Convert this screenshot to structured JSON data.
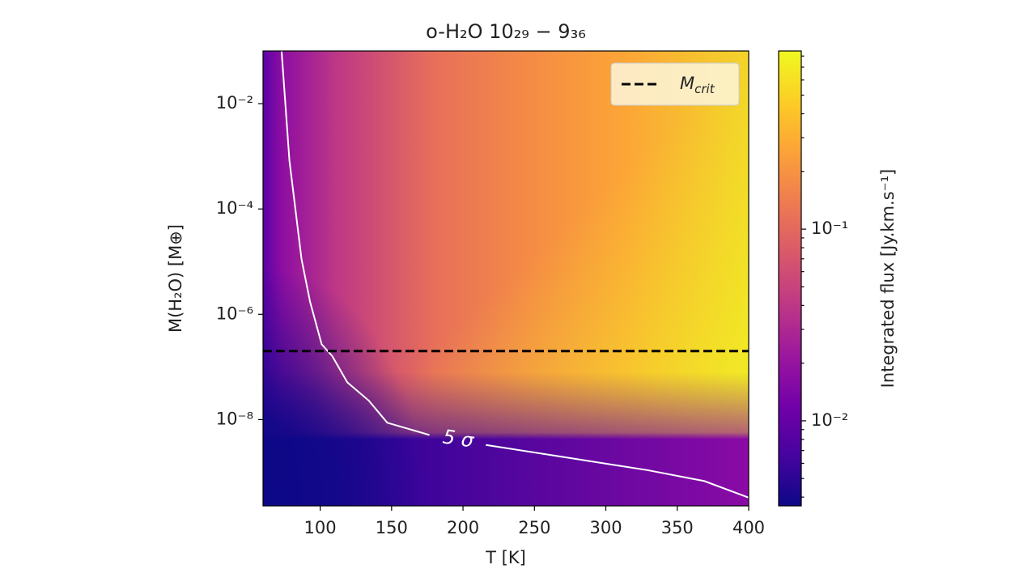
{
  "chart_data": {
    "type": "heatmap",
    "title": "o-H₂O 10₂₉ − 9₃₆",
    "xlabel": "T [K]",
    "ylabel": "M(H₂O)  [M⊕]",
    "colorbar_label": "Integrated flux [Jy.km.s⁻¹]",
    "xlim": [
      60,
      400
    ],
    "xticks": [
      100,
      150,
      200,
      250,
      300,
      350,
      400
    ],
    "ylim": [
      2.3e-10,
      0.1
    ],
    "yscale": "log",
    "yticks": [
      {
        "value": 0.01,
        "label": "10⁻²"
      },
      {
        "value": 0.0001,
        "label": "10⁻⁴"
      },
      {
        "value": 1e-06,
        "label": "10⁻⁶"
      },
      {
        "value": 1e-08,
        "label": "10⁻⁸"
      }
    ],
    "clim": [
      0.0036,
      0.85
    ],
    "cscale": "log",
    "cticks": [
      {
        "value": 0.1,
        "label": "10⁻¹"
      },
      {
        "value": 0.01,
        "label": "10⁻²"
      }
    ],
    "cticks_minor": [
      0.004,
      0.005,
      0.006,
      0.007,
      0.008,
      0.009,
      0.02,
      0.03,
      0.04,
      0.05,
      0.06,
      0.07,
      0.08,
      0.09,
      0.2,
      0.3,
      0.4,
      0.5,
      0.6,
      0.7,
      0.8
    ],
    "contour": {
      "label": "5 σ",
      "color": "#ffffff",
      "x": [
        73,
        78.5,
        87,
        93,
        101,
        108.5,
        119,
        134,
        147,
        165,
        176.5,
        null,
        216,
        272.6,
        329,
        369,
        400
      ],
      "y": [
        0.1,
        0.00083,
        1.1e-05,
        1.7e-06,
        2.7e-07,
        1.6e-07,
        5.1e-08,
        2.3e-08,
        8.7e-09,
        6.3e-09,
        5.1e-09,
        null,
        3.3e-09,
        1.9e-09,
        1.1e-09,
        6.8e-10,
        3.3e-10
      ]
    },
    "hline": {
      "name": "Mcrit",
      "value": 2e-07,
      "color": "#000000"
    },
    "legend": "upper right"
  }
}
